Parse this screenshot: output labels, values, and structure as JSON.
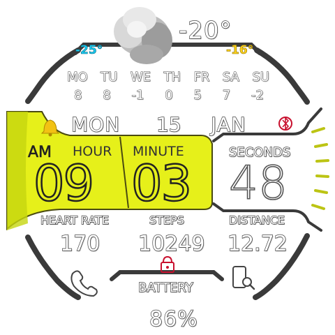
{
  "colors": {
    "accent": "#e6f01a",
    "accent_dark": "#c6d60f",
    "outline": "#3a3a3a",
    "temp_low": "#18c9f0",
    "temp_high": "#ffd21a",
    "alert": "#c8102e"
  },
  "weather": {
    "icon": "fog-cloud-icon",
    "current_temp": "-20°",
    "low_temp": "-25°",
    "high_temp": "-16°"
  },
  "forecast": {
    "days": [
      "MO",
      "TU",
      "WE",
      "TH",
      "FR",
      "SA",
      "SU"
    ],
    "temps": [
      "8",
      "8",
      "-1",
      "0",
      "5",
      "7",
      "-2"
    ]
  },
  "date": {
    "weekday": "MON",
    "day": "15",
    "month": "JAN"
  },
  "time": {
    "ampm": "AM",
    "hour_label": "HOUR",
    "minute_label": "MINUTE",
    "hour": "09",
    "minute": "03",
    "seconds_label": "SECONDS",
    "seconds": "48"
  },
  "stats": {
    "heart_rate_label": "HEART RATE",
    "heart_rate": "170",
    "steps_label": "STEPS",
    "steps": "10249",
    "distance_label": "DISTANCE",
    "distance": "12.72"
  },
  "battery": {
    "label": "BATTERY",
    "value": "86%"
  }
}
